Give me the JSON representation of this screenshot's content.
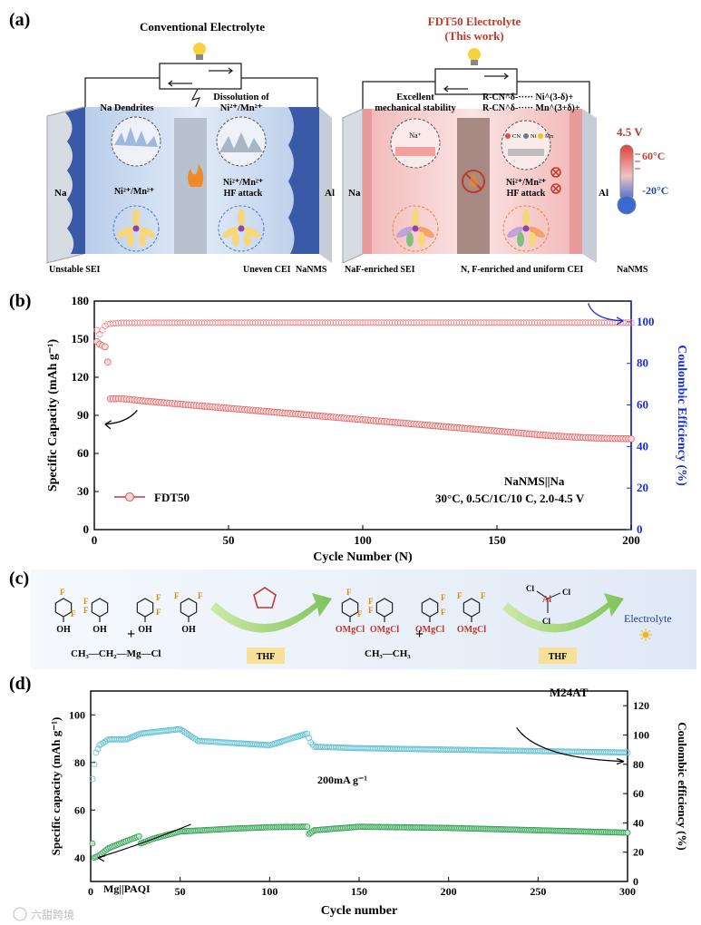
{
  "panel_a": {
    "label": "(a)",
    "left": {
      "title": "Conventional Electrolyte",
      "anode_label": "Na",
      "cathode_label": "Al",
      "dendrite_caption": "Na Dendrites",
      "dissolution_caption_1": "Dissolution of",
      "dissolution_caption_2": "Ni²⁺/Mn²⁺",
      "ion_label": "Ni²⁺/Mn²⁺",
      "hf_label_1": "Ni²⁺/Mn²⁺",
      "hf_label_2": "HF attack",
      "sei_label": "Unstable SEI",
      "cei_label": "Uneven CEI",
      "cathode_name": "NaNMS"
    },
    "right": {
      "title_1": "FDT50 Electrolyte",
      "title_2": "(This work)",
      "anode_label": "Na",
      "cathode_label": "Al",
      "stability_caption_1": "Excellent",
      "stability_caption_2": "mechanical stability",
      "rcn_1": "R-CN^δ-····· Ni^(3-δ)+",
      "rcn_2": "R-CN^δ-····· Mn^(3+δ)+",
      "na_plus": "Na⁺",
      "legend_cn": "CN",
      "legend_ni": "Ni",
      "legend_mn": "Mn",
      "hf_label_1": "Ni²⁺/Mn²⁺",
      "hf_label_2": "HF attack",
      "sei_label": "NaF-enriched SEI",
      "cei_label": "N, F-enriched and uniform CEI",
      "cathode_name": "NaNMS"
    },
    "voltage": "4.5 V",
    "temp_high": "60°C",
    "temp_low": "-20°C",
    "colors": {
      "left_bg": "#c9daf0",
      "right_bg": "#f2c4c4",
      "title_red": "#c0392b",
      "electrode_blue": "#3a5aa8"
    }
  },
  "panel_b": {
    "label": "(b)",
    "chart_data": {
      "type": "scatter",
      "xlabel": "Cycle Number (N)",
      "ylabel_left": "Specific Capacity (mAh g⁻¹)",
      "ylabel_right": "Coulombic Efficiency (%)",
      "xlim": [
        0,
        200
      ],
      "ylim_left": [
        0,
        180
      ],
      "ylim_right": [
        0,
        110
      ],
      "x_ticks": [
        "0",
        "50",
        "100",
        "150",
        "200"
      ],
      "y_ticks_left": [
        "0",
        "30",
        "60",
        "90",
        "120",
        "150",
        "180"
      ],
      "y_ticks_right": [
        "0",
        "20",
        "40",
        "60",
        "80",
        "100"
      ],
      "series": [
        {
          "name": "FDT50",
          "axis": "left",
          "points": [
            [
              1,
              148
            ],
            [
              2,
              146
            ],
            [
              3,
              145
            ],
            [
              4,
              144
            ],
            [
              5,
              132
            ],
            [
              6,
              103
            ],
            [
              10,
              103.2
            ],
            [
              20,
              101
            ],
            [
              30,
              99.2
            ],
            [
              40,
              97.4
            ],
            [
              50,
              95.6
            ],
            [
              60,
              93.8
            ],
            [
              70,
              92
            ],
            [
              80,
              90.2
            ],
            [
              90,
              88.4
            ],
            [
              100,
              86.6
            ],
            [
              110,
              84.8
            ],
            [
              120,
              83
            ],
            [
              130,
              81.2
            ],
            [
              140,
              79.4
            ],
            [
              150,
              77.6
            ],
            [
              160,
              75.8
            ],
            [
              170,
              74
            ],
            [
              180,
              72.7
            ],
            [
              190,
              71.9
            ],
            [
              200,
              71.5
            ]
          ]
        },
        {
          "name": "Coulombic Efficiency",
          "axis": "right",
          "points": [
            [
              1,
              96
            ],
            [
              2,
              94
            ],
            [
              3,
              96
            ],
            [
              4,
              98
            ],
            [
              5,
              99
            ],
            [
              10,
              99.5
            ],
            [
              50,
              99.6
            ],
            [
              100,
              99.6
            ],
            [
              150,
              99.6
            ],
            [
              200,
              99.6
            ]
          ]
        }
      ],
      "legend_label": "FDT50",
      "annotation_1": "NaNMS||Na",
      "annotation_2": "30°C, 0.5C/1C/10 C, 2.0-4.5 V",
      "colors": {
        "capacity": "#e06666",
        "ce": "#f08080",
        "right_axis": "#1a2fd6"
      }
    }
  },
  "panel_c": {
    "label": "(c)",
    "oh_label": "OH",
    "f_label": "F",
    "omgcl_label": "OMgCl",
    "reagent_1": "CH₃—CH₂—Mg—Cl",
    "solvent_label": "THF",
    "plus": "+",
    "byproduct": "CH₃—CH₃",
    "al_label": "Al",
    "cl_label": "Cl",
    "product": "Electrolyte"
  },
  "panel_d": {
    "label": "(d)",
    "chart_data": {
      "type": "scatter",
      "xlabel": "Cycle number",
      "ylabel_left": "Specific capacity (mAh g⁻¹)",
      "ylabel_right": "Coulombic efficiency (%)",
      "xlim": [
        0,
        300
      ],
      "ylim_left": [
        30,
        110
      ],
      "ylim_right": [
        0,
        130
      ],
      "x_ticks": [
        "0",
        "50",
        "100",
        "150",
        "200",
        "250",
        "300"
      ],
      "y_ticks_left": [
        "40",
        "60",
        "80",
        "100"
      ],
      "y_ticks_right": [
        "0",
        "20",
        "40",
        "60",
        "80",
        "100",
        "120"
      ],
      "series": [
        {
          "name": "Specific capacity",
          "axis": "left",
          "points": [
            [
              1,
              46
            ],
            [
              2,
              40
            ],
            [
              5,
              41
            ],
            [
              10,
              44
            ],
            [
              20,
              47
            ],
            [
              27,
              49
            ],
            [
              28,
              46
            ],
            [
              35,
              48
            ],
            [
              50,
              51
            ],
            [
              80,
              52.2
            ],
            [
              100,
              52.8
            ],
            [
              121,
              53
            ],
            [
              122,
              50
            ],
            [
              125,
              51.5
            ],
            [
              150,
              53
            ],
            [
              200,
              52.5
            ],
            [
              250,
              51.5
            ],
            [
              300,
              50.5
            ]
          ]
        },
        {
          "name": "Coulombic efficiency",
          "axis": "right",
          "points": [
            [
              1,
              70
            ],
            [
              2,
              80
            ],
            [
              3,
              88
            ],
            [
              5,
              93
            ],
            [
              10,
              97
            ],
            [
              20,
              97
            ],
            [
              28,
              101
            ],
            [
              50,
              104
            ],
            [
              60,
              96
            ],
            [
              100,
              93
            ],
            [
              121,
              101
            ],
            [
              123,
              95
            ],
            [
              125,
              92
            ],
            [
              150,
              91
            ],
            [
              200,
              90
            ],
            [
              250,
              89
            ],
            [
              300,
              88
            ]
          ]
        }
      ],
      "annotation_cell": "M24AT",
      "annotation_rate": "200mA g⁻¹",
      "annotation_system": "Mg||PAQI",
      "colors": {
        "capacity": "#2e9e4f",
        "ce": "#66c2d6"
      }
    }
  },
  "watermark": "六甜跨境"
}
